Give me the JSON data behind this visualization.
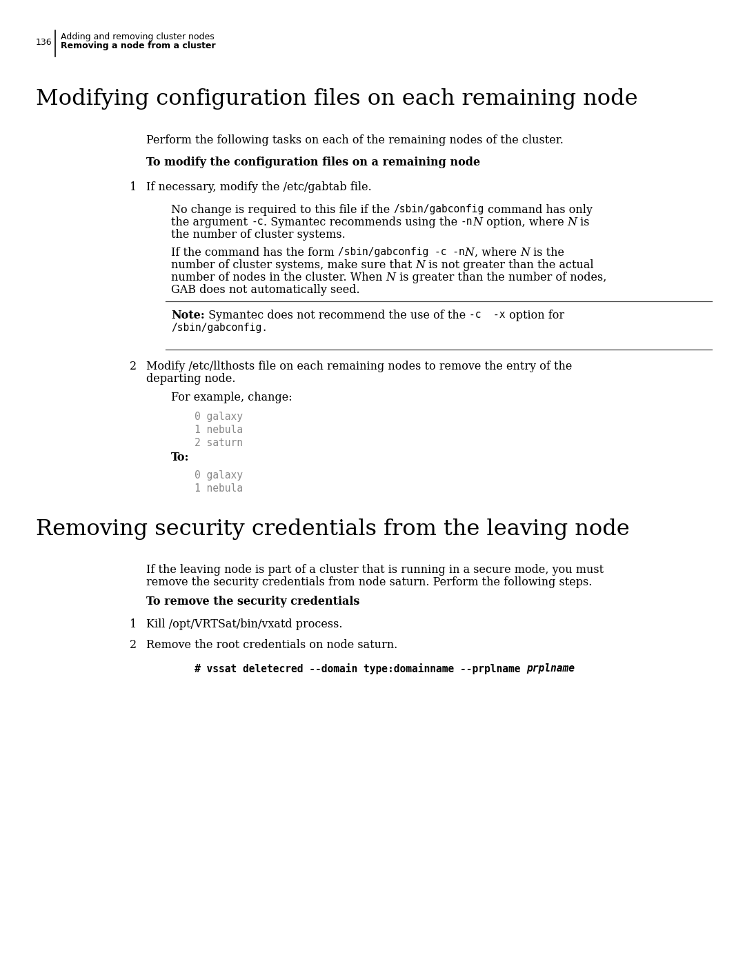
{
  "bg_color": "#ffffff",
  "page_number": "136",
  "header_line1": "Adding and removing cluster nodes",
  "header_line2": "Removing a node from a cluster",
  "section1_title": "Modifying configuration files on each remaining node",
  "section1_intro": "Perform the following tasks on each of the remaining nodes of the cluster.",
  "section1_bold_heading": "To modify the configuration files on a remaining node",
  "step1_label": "1",
  "step1_text": "If necessary, modify the /etc/gabtab file.",
  "note_bold": "Note:",
  "note_text1": " Symantec does not recommend the use of the ",
  "note_code1": "-c  -x",
  "note_text2": " option for",
  "note_code2": "/sbin/gabconfig.",
  "step2_label": "2",
  "step2_text1": "Modify /etc/llthosts file on each remaining nodes to remove the entry of the",
  "step2_text2": "departing node.",
  "step2_for_example": "For example, change:",
  "step2_code_before": [
    "0 galaxy",
    "1 nebula",
    "2 saturn"
  ],
  "step2_to": "To:",
  "step2_code_after": [
    "0 galaxy",
    "1 nebula"
  ],
  "section2_title": "Removing security credentials from the leaving node",
  "section2_intro1": "If the leaving node is part of a cluster that is running in a secure mode, you must",
  "section2_intro2": "remove the security credentials from node saturn. Perform the following steps.",
  "section2_bold_heading": "To remove the security credentials",
  "sec2_step1_label": "1",
  "sec2_step1_text": "Kill /opt/VRTSat/bin/vxatd process.",
  "sec2_step2_label": "2",
  "sec2_step2_text": "Remove the root credentials on node saturn."
}
